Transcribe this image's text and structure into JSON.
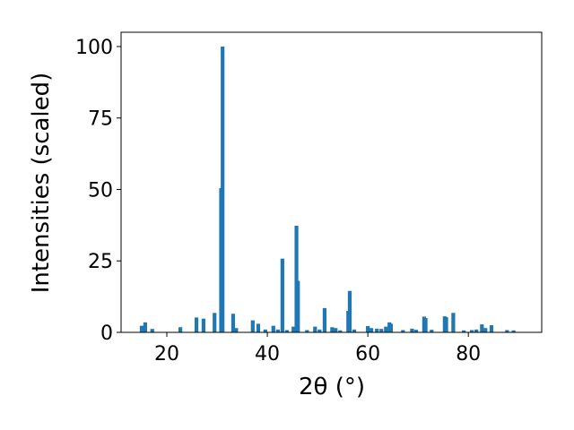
{
  "chart_data": {
    "type": "bar",
    "xlabel": "2θ (°)",
    "ylabel": "Intensities (scaled)",
    "color": "#1f77b4",
    "x": [
      15.0,
      15.7,
      17.1,
      22.7,
      25.9,
      27.3,
      29.5,
      30.8,
      31.1,
      33.2,
      33.8,
      37.1,
      38.2,
      39.6,
      41.2,
      42.1,
      43.0,
      43.9,
      45.2,
      45.8,
      46.1,
      47.9,
      49.5,
      50.4,
      51.4,
      52.9,
      53.6,
      54.5,
      56.1,
      56.4,
      57.3,
      60.0,
      60.7,
      61.8,
      62.7,
      63.6,
      64.3,
      64.6,
      67.0,
      68.8,
      69.6,
      71.2,
      71.5,
      72.7,
      75.3,
      75.6,
      77.0,
      79.1,
      80.7,
      81.6,
      82.7,
      83.4,
      84.6,
      87.7,
      89.0
    ],
    "values": [
      2.3,
      3.5,
      1.2,
      1.8,
      5.2,
      4.8,
      6.8,
      50.5,
      100,
      6.5,
      1.5,
      4.2,
      3.0,
      1.0,
      2.3,
      1.0,
      25.8,
      0.8,
      2.0,
      37.3,
      18.0,
      0.8,
      2.0,
      1.0,
      8.5,
      1.8,
      1.5,
      0.7,
      7.5,
      14.5,
      1.0,
      2.2,
      1.5,
      1.3,
      1.2,
      2.0,
      3.5,
      3.0,
      0.8,
      1.3,
      0.9,
      5.5,
      5.0,
      0.9,
      5.6,
      5.3,
      6.8,
      0.7,
      0.8,
      1.0,
      2.8,
      1.5,
      2.5,
      0.8,
      0.7
    ],
    "xlim": [
      10.9,
      94.6
    ],
    "ylim": [
      0,
      105
    ],
    "xticks": [
      20,
      40,
      60,
      80
    ],
    "yticks": [
      0,
      25,
      50,
      75,
      100
    ]
  }
}
